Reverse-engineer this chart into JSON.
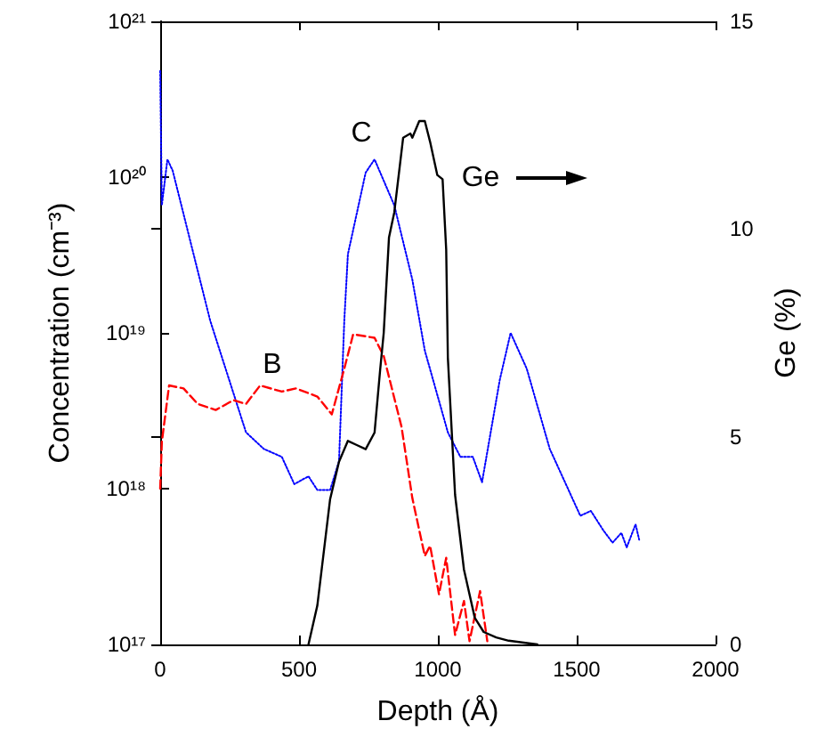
{
  "chart_data": {
    "type": "line",
    "xlabel": "Depth (Å)",
    "ylabel": "Concentration (cm⁻³)",
    "y2label": "Ge (%)",
    "xlim": [
      0,
      2000
    ],
    "xticks": [
      0,
      500,
      1000,
      1500,
      2000
    ],
    "ylim": [
      1e+17,
      1e+21
    ],
    "yticks": [
      {
        "value": 1e+17,
        "label": "10¹⁷"
      },
      {
        "value": 1e+18,
        "label": "10¹⁸"
      },
      {
        "value": 1e+19,
        "label": "10¹⁹"
      },
      {
        "value": 1e+20,
        "label": "10²⁰"
      },
      {
        "value": 1e+21,
        "label": "10²¹"
      }
    ],
    "y2lim": [
      0,
      15
    ],
    "y2ticks": [
      0,
      5,
      10,
      15
    ],
    "log": "y",
    "grid": false,
    "marker": "none",
    "series": [
      {
        "color": "#0000ff",
        "line_style": "dotted",
        "x": [
          0,
          6,
          26,
          45,
          180,
          309,
          373,
          438,
          483,
          534,
          566,
          612,
          644,
          663,
          676,
          740,
          772,
          843,
          908,
          953,
          1036,
          1081,
          1126,
          1159,
          1223,
          1262,
          1320,
          1403,
          1513,
          1551,
          1596,
          1629,
          1661,
          1680,
          1712,
          1725
        ],
        "values": [
          4.8e+20,
          6.6e+19,
          1.3e+20,
          1.1e+20,
          1.2e+19,
          2.3e+18,
          1.8e+18,
          1.6e+18,
          1.07e+18,
          1.2e+18,
          9.8e+17,
          9.8e+17,
          1.5e+18,
          1.2e+19,
          3.2e+19,
          1.07e+20,
          1.3e+20,
          6.6e+19,
          2.2e+19,
          7.7e+18,
          2.3e+18,
          1.6e+18,
          1.6e+18,
          1.1e+18,
          5e+18,
          1e+19,
          5.9e+18,
          1.8e+18,
          6.7e+17,
          7.2e+17,
          5.4e+17,
          4.5e+17,
          5.2e+17,
          4.2e+17,
          5.9e+17,
          4.7e+17
        ]
      },
      {
        "color": "#ff0000",
        "line_style": "dashed",
        "x": [
          0,
          6,
          32,
          84,
          135,
          200,
          264,
          309,
          360,
          438,
          489,
          566,
          618,
          663,
          695,
          772,
          805,
          869,
          908,
          953,
          972,
          1004,
          1030,
          1062,
          1094,
          1114,
          1152,
          1178
        ],
        "values": [
          1e+18,
          2e+18,
          4.6e+18,
          4.4e+18,
          3.5e+18,
          3.2e+18,
          3.7e+18,
          3.5e+18,
          4.6e+18,
          4.2e+18,
          4.4e+18,
          3.9e+18,
          3e+18,
          5.9e+18,
          9.8e+18,
          9.3e+18,
          7.1e+18,
          2.5e+18,
          8.7e+17,
          3.7e+17,
          4.3e+17,
          2.1e+17,
          3.6e+17,
          1.15e+17,
          1.9e+17,
          1.05e+17,
          2.2e+17,
          1.05e+17
        ]
      },
      {
        "color": "#000000",
        "line_style": "solid",
        "axis": "y2",
        "x": [
          534,
          566,
          612,
          644,
          676,
          708,
          740,
          772,
          792,
          805,
          824,
          843,
          875,
          901,
          908,
          933,
          953,
          972,
          998,
          1017,
          1030,
          1036,
          1062,
          1094,
          1133,
          1165,
          1210,
          1255,
          1358
        ],
        "values": [
          0,
          0.94,
          3.5,
          4.4,
          4.9,
          4.8,
          4.7,
          5.1,
          6.6,
          7.5,
          9.8,
          10.4,
          12.2,
          12.3,
          12.2,
          12.6,
          12.6,
          12.1,
          11.3,
          11.2,
          9.5,
          6.9,
          3.6,
          1.8,
          0.64,
          0.3,
          0.17,
          0.09,
          0
        ]
      }
    ],
    "annotations": [
      "B",
      "C",
      "Ge"
    ]
  }
}
